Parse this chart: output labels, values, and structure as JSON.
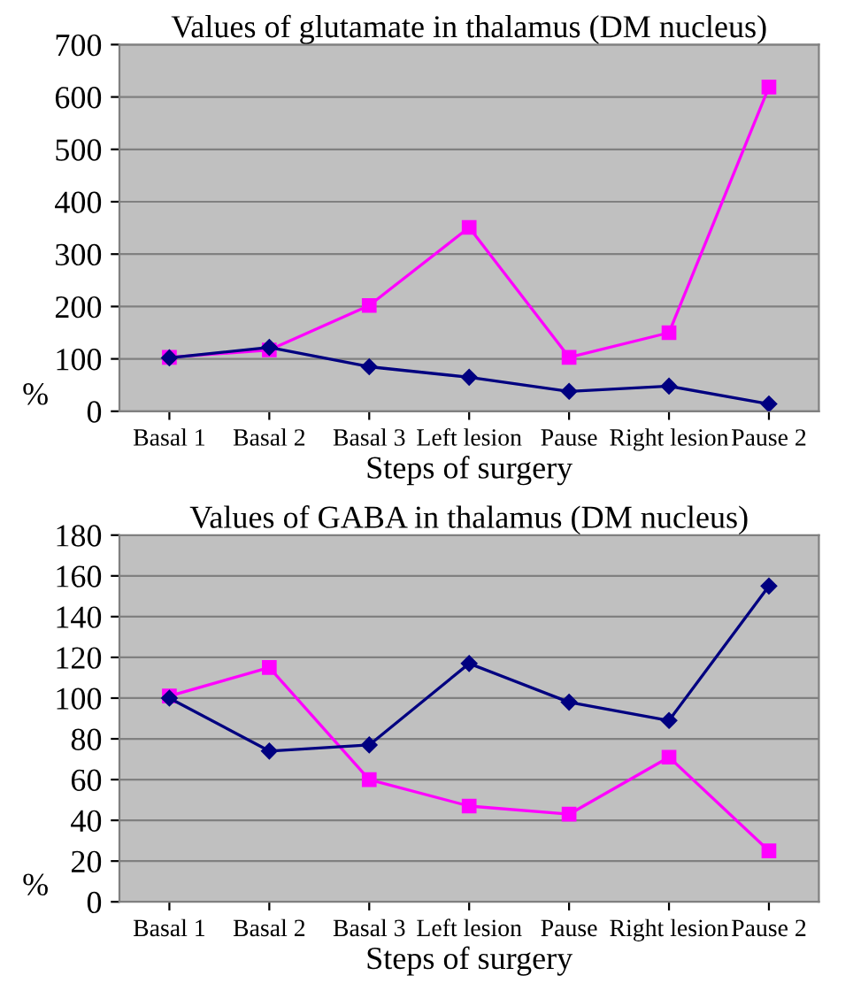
{
  "chart_data": [
    {
      "type": "line",
      "title": "Values of glutamate in thalamus (DM nucleus)",
      "xlabel": "Steps of surgery",
      "ylabel": "%",
      "categories": [
        "Basal 1",
        "Basal 2",
        "Basal 3",
        "Left lesion",
        "Pause",
        "Right lesion",
        "Pause 2"
      ],
      "series": [
        {
          "color": "#000080",
          "marker": "diamond",
          "values": [
            102,
            122,
            85,
            65,
            38,
            48,
            14
          ]
        },
        {
          "color": "#ff00ff",
          "marker": "square",
          "values": [
            103,
            117,
            202,
            351,
            103,
            150,
            619
          ]
        }
      ],
      "ylim": [
        0,
        700
      ],
      "yticks": [
        0,
        100,
        200,
        300,
        400,
        500,
        600,
        700
      ],
      "grid": "y",
      "legend": false
    },
    {
      "type": "line",
      "title": "Values of GABA in thalamus (DM nucleus)",
      "xlabel": "Steps of surgery",
      "ylabel": "%",
      "categories": [
        "Basal 1",
        "Basal 2",
        "Basal 3",
        "Left lesion",
        "Pause",
        "Right lesion",
        "Pause 2"
      ],
      "series": [
        {
          "color": "#000080",
          "marker": "diamond",
          "values": [
            100,
            74,
            77,
            117,
            98,
            89,
            155
          ]
        },
        {
          "color": "#ff00ff",
          "marker": "square",
          "values": [
            101,
            115,
            60,
            47,
            43,
            71,
            25
          ]
        }
      ],
      "ylim": [
        0,
        180
      ],
      "yticks": [
        0,
        20,
        40,
        60,
        80,
        100,
        120,
        140,
        160,
        180
      ],
      "grid": "y",
      "legend": false
    }
  ]
}
